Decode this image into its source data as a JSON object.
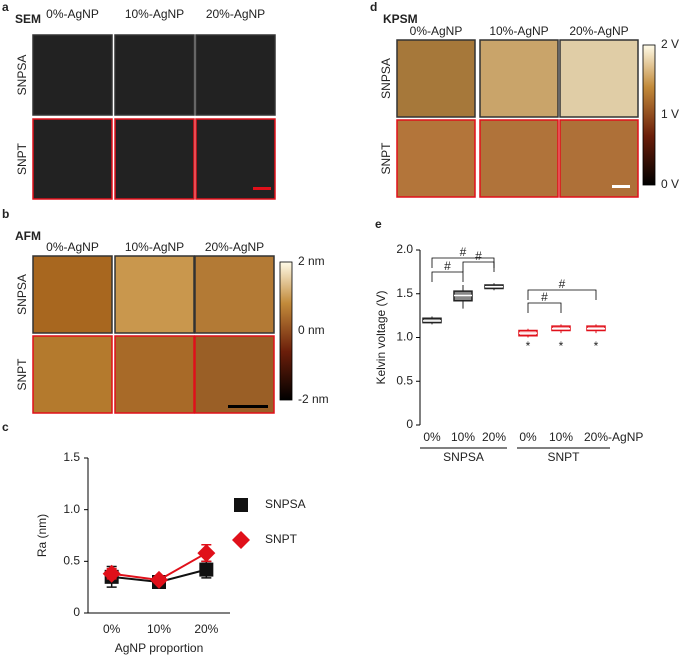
{
  "panels": [
    {
      "letter": "a",
      "title": "SEM",
      "columns": [
        "0%-AgNP",
        "10%-AgNP",
        "20%-AgNP"
      ],
      "rows": [
        "SNPSA",
        "SNPT"
      ]
    },
    {
      "letter": "b",
      "title": "AFM",
      "columns": [
        "0%-AgNP",
        "10%-AgNP",
        "20%-AgNP"
      ],
      "rows": [
        "SNPSA",
        "SNPT"
      ],
      "colorbar": [
        "2 nm",
        "0 nm",
        "-2 nm"
      ]
    },
    {
      "letter": "d",
      "title": "KPSM",
      "columns": [
        "0%-AgNP",
        "10%-AgNP",
        "20%-AgNP"
      ],
      "rows": [
        "SNPSA",
        "SNPT"
      ],
      "colorbar": [
        "2 V",
        "1 V",
        "0 V"
      ]
    }
  ],
  "chart_data": [
    {
      "type": "line",
      "letter": "c",
      "xlabel": "AgNP proportion",
      "ylabel": "Ra (nm)",
      "categories": [
        "0%",
        "10%",
        "20%"
      ],
      "ylim": [
        0,
        1.5
      ],
      "yticks": [
        0,
        0.5,
        {
          "value": 1.0,
          "label": "1.0"
        },
        1.5
      ],
      "legend": "right",
      "series": [
        {
          "name": "SNPSA",
          "color": "#111111",
          "marker": "square",
          "values": [
            0.35,
            0.3,
            0.42
          ],
          "errors": [
            0.1,
            0.03,
            0.08
          ]
        },
        {
          "name": "SNPT",
          "color": "#e0101a",
          "marker": "diamond",
          "values": [
            0.38,
            0.32,
            0.58
          ],
          "errors": [
            0.05,
            0.03,
            0.08
          ]
        }
      ]
    },
    {
      "type": "box",
      "letter": "e",
      "ylabel": "Kelvin voltage (V)",
      "categories": [
        "0%",
        "10%",
        "20%",
        "0%",
        "10%",
        "20%-AgNP"
      ],
      "groups": [
        "SNPSA",
        "SNPT"
      ],
      "ylim": [
        0,
        2.0
      ],
      "yticks": [
        0,
        0.5,
        {
          "value": 1.0,
          "label": "1.0"
        },
        1.5,
        {
          "value": 2.0,
          "label": "2.0"
        }
      ],
      "series": [
        {
          "name": "SNPSA",
          "color": "#222222",
          "values": [
            [
              1.15,
              1.17,
              1.19,
              1.22,
              1.24
            ],
            [
              1.33,
              1.42,
              1.48,
              1.53,
              1.6
            ],
            [
              1.54,
              1.56,
              1.58,
              1.6,
              1.62
            ]
          ]
        },
        {
          "name": "SNPT",
          "color": "#e0101a",
          "values": [
            [
              1.0,
              1.02,
              1.05,
              1.08,
              1.1
            ],
            [
              1.05,
              1.08,
              1.1,
              1.13,
              1.15
            ],
            [
              1.05,
              1.08,
              1.1,
              1.13,
              1.15
            ]
          ]
        }
      ],
      "annotations": [
        "#",
        "#",
        "#",
        "#",
        "#",
        "*",
        "*",
        "*"
      ]
    }
  ]
}
